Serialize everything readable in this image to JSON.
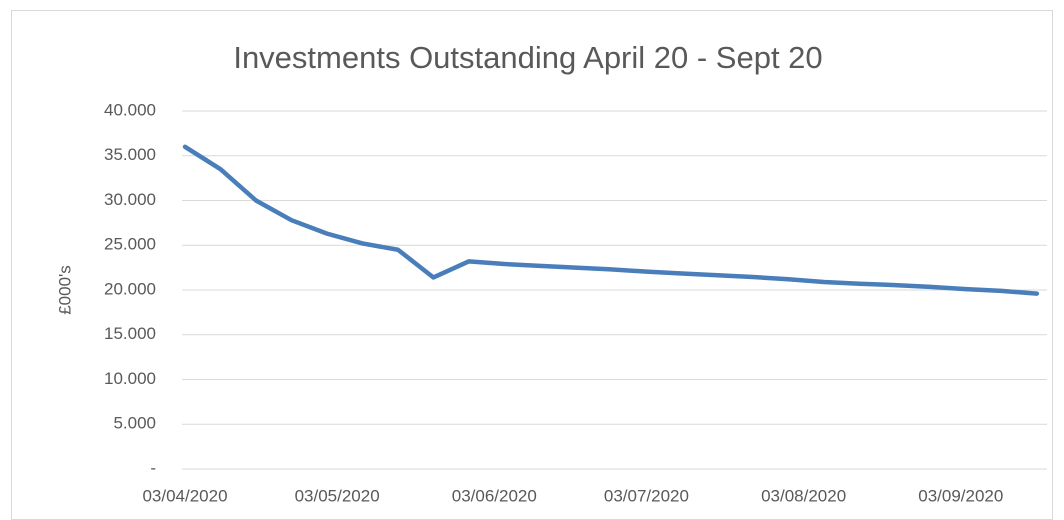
{
  "chart_data": {
    "type": "line",
    "title": "Investments Outstanding April 20 - Sept 20",
    "y_label": "£000's",
    "x": [
      "2020-04-03",
      "2020-04-10",
      "2020-04-17",
      "2020-04-24",
      "2020-05-01",
      "2020-05-08",
      "2020-05-15",
      "2020-05-22",
      "2020-05-29",
      "2020-06-05",
      "2020-06-12",
      "2020-06-19",
      "2020-06-26",
      "2020-07-03",
      "2020-07-10",
      "2020-07-17",
      "2020-07-24",
      "2020-07-31",
      "2020-08-07",
      "2020-08-14",
      "2020-08-21",
      "2020-08-28",
      "2020-09-04",
      "2020-09-11",
      "2020-09-18"
    ],
    "series": [
      {
        "name": "Investments Outstanding",
        "color": "#4a7ebb",
        "values": [
          36000,
          33500,
          30000,
          27800,
          26300,
          25200,
          24500,
          21400,
          23200,
          22900,
          22700,
          22500,
          22300,
          22050,
          21850,
          21650,
          21450,
          21200,
          20900,
          20700,
          20550,
          20350,
          20100,
          19900,
          19600
        ]
      }
    ],
    "xlim": [
      "2020-04-03",
      "2020-09-20"
    ],
    "xticks": [
      {
        "value": "2020-04-03",
        "label": "03/04/2020"
      },
      {
        "value": "2020-05-03",
        "label": "03/05/2020"
      },
      {
        "value": "2020-06-03",
        "label": "03/06/2020"
      },
      {
        "value": "2020-07-03",
        "label": "03/07/2020"
      },
      {
        "value": "2020-08-03",
        "label": "03/08/2020"
      },
      {
        "value": "2020-09-03",
        "label": "03/09/2020"
      }
    ],
    "ylim": [
      0,
      40000
    ],
    "yticks": [
      {
        "value": 0,
        "label": "-"
      },
      {
        "value": 5000,
        "label": "5.000"
      },
      {
        "value": 10000,
        "label": "10.000"
      },
      {
        "value": 15000,
        "label": "15.000"
      },
      {
        "value": 20000,
        "label": "20.000"
      },
      {
        "value": 25000,
        "label": "25.000"
      },
      {
        "value": 30000,
        "label": "30.000"
      },
      {
        "value": 35000,
        "label": "35.000"
      },
      {
        "value": 40000,
        "label": "40.000"
      }
    ],
    "grid": true
  }
}
